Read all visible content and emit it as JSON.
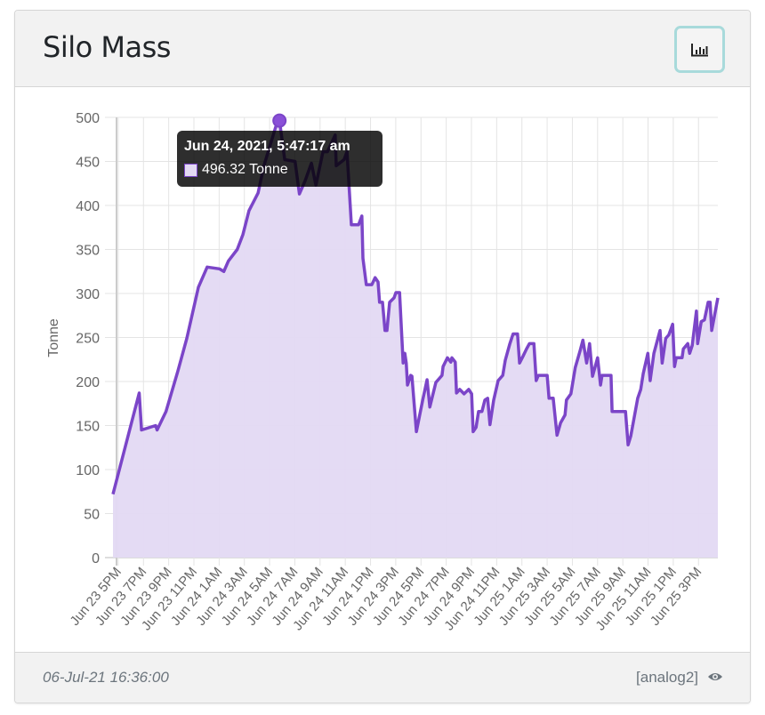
{
  "card": {
    "title": "Silo Mass",
    "chart_button_icon": "bar-chart-icon",
    "footer": {
      "timestamp": "06-Jul-21 16:36:00",
      "source": "[analog2]",
      "view_icon": "eye-icon"
    }
  },
  "colors": {
    "line": "#7b45c8",
    "fill": "#e3d9f3",
    "button_border": "#a8dadb"
  },
  "chart_data": {
    "type": "area",
    "title": "",
    "xlabel": "",
    "ylabel": "Tonne",
    "ylim": [
      0,
      500
    ],
    "yticks": [
      "0",
      "50",
      "100",
      "150",
      "200",
      "250",
      "300",
      "350",
      "400",
      "450",
      "500"
    ],
    "xticks": [
      "Jun 23 5PM",
      "Jun 23 7PM",
      "Jun 23 9PM",
      "Jun 23 11PM",
      "Jun 24 1AM",
      "Jun 24 3AM",
      "Jun 24 5AM",
      "Jun 24 7AM",
      "Jun 24 9AM",
      "Jun 24 11AM",
      "Jun 24 1PM",
      "Jun 24 3PM",
      "Jun 24 5PM",
      "Jun 24 7PM",
      "Jun 24 9PM",
      "Jun 24 11PM",
      "Jun 25 1AM",
      "Jun 25 3AM",
      "Jun 25 5AM",
      "Jun 25 7AM",
      "Jun 25 9AM",
      "Jun 25 11AM",
      "Jun 25 1PM",
      "Jun 25 3PM"
    ],
    "grid": true,
    "legend": "none",
    "tooltip": {
      "title": "Jun 24, 2021, 5:47:17 am",
      "value": "496.32 Tonne",
      "point": [
        "2021-06-24 05:47",
        496.32
      ]
    },
    "series": [
      {
        "points": [
          [
            "2021-06-23 16:35",
            72
          ],
          [
            "2021-06-23 18:40",
            187
          ],
          [
            "2021-06-23 18:51",
            145
          ],
          [
            "2021-06-23 19:58",
            150
          ],
          [
            "2021-06-23 20:05",
            145
          ],
          [
            "2021-06-23 20:47",
            166
          ],
          [
            "2021-06-23 21:44",
            212
          ],
          [
            "2021-06-23 22:26",
            249
          ],
          [
            "2021-06-23 23:21",
            307
          ],
          [
            "2021-06-24 00:03",
            330
          ],
          [
            "2021-06-24 01:01",
            328
          ],
          [
            "2021-06-24 01:22",
            325
          ],
          [
            "2021-06-24 01:44",
            337
          ],
          [
            "2021-06-24 02:26",
            350
          ],
          [
            "2021-06-24 02:53",
            367
          ],
          [
            "2021-06-24 03:22",
            394
          ],
          [
            "2021-06-24 04:05",
            414
          ],
          [
            "2021-06-24 04:33",
            445
          ],
          [
            "2021-06-24 05:29",
            489
          ],
          [
            "2021-06-24 05:47",
            496.32
          ],
          [
            "2021-06-24 06:12",
            452
          ],
          [
            "2021-06-24 07:01",
            450
          ],
          [
            "2021-06-24 07:22",
            413
          ],
          [
            "2021-06-24 07:49",
            428
          ],
          [
            "2021-06-24 08:19",
            448
          ],
          [
            "2021-06-24 08:40",
            423
          ],
          [
            "2021-06-24 09:14",
            461
          ],
          [
            "2021-06-24 09:35",
            461
          ],
          [
            "2021-06-24 10:12",
            480
          ],
          [
            "2021-06-24 10:17",
            445
          ],
          [
            "2021-06-24 10:54",
            452
          ],
          [
            "2021-06-24 11:08",
            461
          ],
          [
            "2021-06-24 11:29",
            378
          ],
          [
            "2021-06-24 12:03",
            378
          ],
          [
            "2021-06-24 12:19",
            388
          ],
          [
            "2021-06-24 12:24",
            340
          ],
          [
            "2021-06-24 12:40",
            310
          ],
          [
            "2021-06-24 13:06",
            310
          ],
          [
            "2021-06-24 13:22",
            318
          ],
          [
            "2021-06-24 13:36",
            313
          ],
          [
            "2021-06-24 13:43",
            290
          ],
          [
            "2021-06-24 13:57",
            290
          ],
          [
            "2021-06-24 14:09",
            258
          ],
          [
            "2021-06-24 14:18",
            258
          ],
          [
            "2021-06-24 14:31",
            290
          ],
          [
            "2021-06-24 14:52",
            295
          ],
          [
            "2021-06-24 15:01",
            301
          ],
          [
            "2021-06-24 15:18",
            301
          ],
          [
            "2021-06-24 15:35",
            221
          ],
          [
            "2021-06-24 15:43",
            232
          ],
          [
            "2021-06-24 15:50",
            221
          ],
          [
            "2021-06-24 15:56",
            196
          ],
          [
            "2021-06-24 16:11",
            207
          ],
          [
            "2021-06-24 16:17",
            206
          ],
          [
            "2021-06-24 16:38",
            143
          ],
          [
            "2021-06-24 17:08",
            179
          ],
          [
            "2021-06-24 17:29",
            202
          ],
          [
            "2021-06-24 17:42",
            171
          ],
          [
            "2021-06-24 18:11",
            199
          ],
          [
            "2021-06-24 18:40",
            207
          ],
          [
            "2021-06-24 18:45",
            217
          ],
          [
            "2021-06-24 19:06",
            227
          ],
          [
            "2021-06-24 19:22",
            222
          ],
          [
            "2021-06-24 19:27",
            227
          ],
          [
            "2021-06-24 19:43",
            222
          ],
          [
            "2021-06-24 19:49",
            187
          ],
          [
            "2021-06-24 20:04",
            191
          ],
          [
            "2021-06-24 20:25",
            186
          ],
          [
            "2021-06-24 20:47",
            191
          ],
          [
            "2021-06-24 21:01",
            186
          ],
          [
            "2021-06-24 21:08",
            143
          ],
          [
            "2021-06-24 21:22",
            148
          ],
          [
            "2021-06-24 21:34",
            166
          ],
          [
            "2021-06-24 21:50",
            166
          ],
          [
            "2021-06-24 22:04",
            179
          ],
          [
            "2021-06-24 22:17",
            181
          ],
          [
            "2021-06-24 22:28",
            151
          ],
          [
            "2021-06-24 22:46",
            179
          ],
          [
            "2021-06-24 23:07",
            201
          ],
          [
            "2021-06-24 23:29",
            207
          ],
          [
            "2021-06-24 23:41",
            224
          ],
          [
            "2021-06-25 00:03",
            243
          ],
          [
            "2021-06-25 00:18",
            254
          ],
          [
            "2021-06-25 00:39",
            254
          ],
          [
            "2021-06-25 00:49",
            221
          ],
          [
            "2021-06-25 01:06",
            229
          ],
          [
            "2021-06-25 01:22",
            237
          ],
          [
            "2021-06-25 01:36",
            243
          ],
          [
            "2021-06-25 01:57",
            243
          ],
          [
            "2021-06-25 02:08",
            201
          ],
          [
            "2021-06-25 02:18",
            207
          ],
          [
            "2021-06-25 03:00",
            207
          ],
          [
            "2021-06-25 03:09",
            181
          ],
          [
            "2021-06-25 03:29",
            181
          ],
          [
            "2021-06-25 03:47",
            139
          ],
          [
            "2021-06-25 04:04",
            153
          ],
          [
            "2021-06-25 04:25",
            162
          ],
          [
            "2021-06-25 04:32",
            179
          ],
          [
            "2021-06-25 04:53",
            186
          ],
          [
            "2021-06-25 05:14",
            216
          ],
          [
            "2021-06-25 05:36",
            234
          ],
          [
            "2021-06-25 05:50",
            247
          ],
          [
            "2021-06-25 06:08",
            221
          ],
          [
            "2021-06-25 06:22",
            243
          ],
          [
            "2021-06-25 06:36",
            206
          ],
          [
            "2021-06-25 07:00",
            227
          ],
          [
            "2021-06-25 07:14",
            196
          ],
          [
            "2021-06-25 07:21",
            207
          ],
          [
            "2021-06-25 08:04",
            207
          ],
          [
            "2021-06-25 08:09",
            166
          ],
          [
            "2021-06-25 09:13",
            166
          ],
          [
            "2021-06-25 09:25",
            128
          ],
          [
            "2021-06-25 09:38",
            138
          ],
          [
            "2021-06-25 10:11",
            181
          ],
          [
            "2021-06-25 10:25",
            191
          ],
          [
            "2021-06-25 10:37",
            209
          ],
          [
            "2021-06-25 10:59",
            232
          ],
          [
            "2021-06-25 11:10",
            201
          ],
          [
            "2021-06-25 11:28",
            232
          ],
          [
            "2021-06-25 11:57",
            258
          ],
          [
            "2021-06-25 12:07",
            221
          ],
          [
            "2021-06-25 12:24",
            249
          ],
          [
            "2021-06-25 12:39",
            253
          ],
          [
            "2021-06-25 12:57",
            265
          ],
          [
            "2021-06-25 13:06",
            217
          ],
          [
            "2021-06-25 13:14",
            227
          ],
          [
            "2021-06-25 13:42",
            227
          ],
          [
            "2021-06-25 13:48",
            237
          ],
          [
            "2021-06-25 14:09",
            243
          ],
          [
            "2021-06-25 14:18",
            232
          ],
          [
            "2021-06-25 14:30",
            241
          ],
          [
            "2021-06-25 14:50",
            280
          ],
          [
            "2021-06-25 14:56",
            243
          ],
          [
            "2021-06-25 15:13",
            268
          ],
          [
            "2021-06-25 15:28",
            270
          ],
          [
            "2021-06-25 15:46",
            290
          ],
          [
            "2021-06-25 15:55",
            290
          ],
          [
            "2021-06-25 16:03",
            258
          ],
          [
            "2021-06-25 16:32",
            295
          ]
        ]
      }
    ]
  }
}
